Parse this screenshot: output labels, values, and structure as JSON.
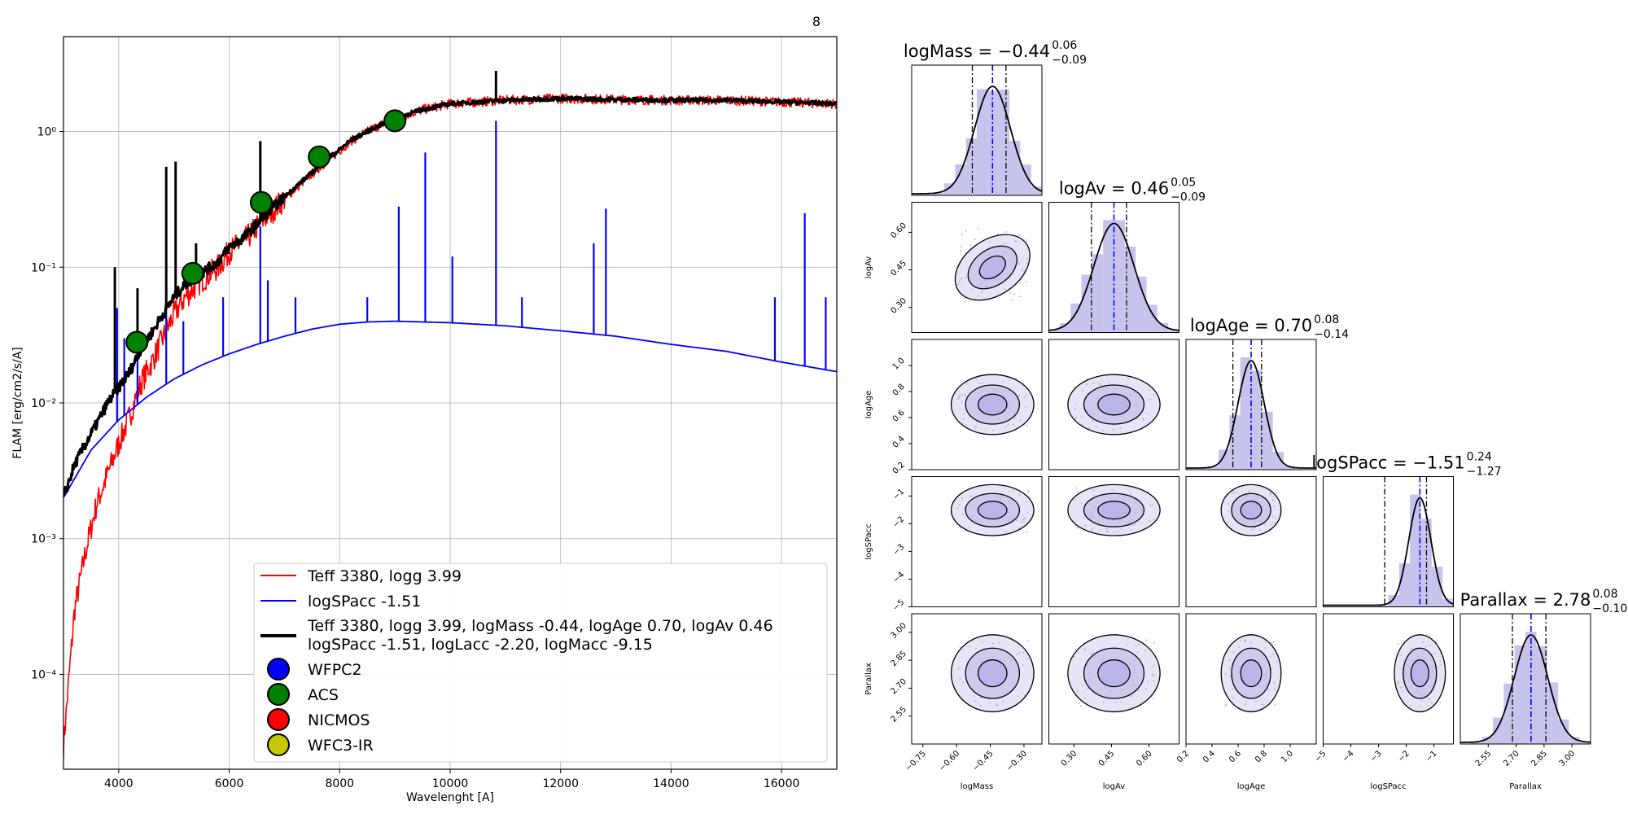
{
  "figure_number": "8",
  "chart_data": [
    {
      "type": "line",
      "xlabel": "Wavelenght [A]",
      "ylabel": "FLAM [erg/cm2/s/A]",
      "yscale": "log",
      "xlim": [
        3000,
        17000
      ],
      "ylim": [
        2e-05,
        5
      ],
      "grid": true,
      "legend_placement": "lower-right",
      "x_ticks": [
        "4000",
        "6000",
        "8000",
        "10000",
        "12000",
        "14000",
        "16000"
      ],
      "y_ticks": [
        "10⁻⁴",
        "10⁻³",
        "10⁻²",
        "10⁻¹",
        "10⁰"
      ],
      "series": [
        {
          "name": "Teff 3380, logg 3.99",
          "color": "#ff0000",
          "x": [
            3000,
            3200,
            3400,
            3600,
            3800,
            4000,
            4200,
            4400,
            4600,
            4800,
            5000,
            5200,
            5500,
            5800,
            6000,
            6300,
            6600,
            7000,
            7400,
            7800,
            8200,
            8600,
            9000,
            9500,
            10000,
            11000,
            12000,
            13000,
            14000,
            15000,
            16000,
            17000
          ],
          "y": [
            3e-05,
            0.0003,
            0.0008,
            0.0018,
            0.003,
            0.005,
            0.008,
            0.014,
            0.02,
            0.03,
            0.045,
            0.06,
            0.08,
            0.1,
            0.13,
            0.16,
            0.22,
            0.32,
            0.45,
            0.62,
            0.85,
            1.05,
            1.25,
            1.45,
            1.6,
            1.7,
            1.75,
            1.72,
            1.7,
            1.7,
            1.65,
            1.6
          ]
        },
        {
          "name": "logSPacc -1.51",
          "color": "#0000ff",
          "x": [
            3000,
            3500,
            4000,
            4500,
            5000,
            5500,
            6000,
            6500,
            7000,
            7500,
            8000,
            8500,
            9000,
            9500,
            10000,
            10500,
            11000,
            12000,
            13000,
            14000,
            15000,
            16000,
            17000
          ],
          "y": [
            0.002,
            0.0045,
            0.0075,
            0.011,
            0.015,
            0.019,
            0.023,
            0.027,
            0.031,
            0.035,
            0.038,
            0.0395,
            0.04,
            0.0395,
            0.039,
            0.038,
            0.037,
            0.034,
            0.031,
            0.027,
            0.024,
            0.02,
            0.017
          ]
        },
        {
          "name": "Teff 3380, logg 3.99, logMass -0.44, logAge 0.70, logAv 0.46",
          "name_line2": "logSPacc -1.51, logLacc -2.20, logMacc -9.15",
          "color": "#000000",
          "x": [
            3000,
            3200,
            3400,
            3600,
            3800,
            4000,
            4200,
            4400,
            4600,
            4800,
            5000,
            5200,
            5500,
            5800,
            6000,
            6300,
            6600,
            7000,
            7400,
            7800,
            8200,
            8600,
            9000,
            9500,
            10000,
            11000,
            12000,
            13000,
            14000,
            15000,
            16000,
            17000
          ],
          "y": [
            0.002,
            0.0035,
            0.005,
            0.007,
            0.01,
            0.013,
            0.017,
            0.025,
            0.033,
            0.045,
            0.06,
            0.075,
            0.09,
            0.11,
            0.14,
            0.17,
            0.23,
            0.33,
            0.46,
            0.63,
            0.86,
            1.05,
            1.25,
            1.45,
            1.6,
            1.7,
            1.75,
            1.72,
            1.7,
            1.7,
            1.65,
            1.6
          ]
        }
      ],
      "photometry": {
        "name": "ACS",
        "color": "#008000",
        "x": [
          4330,
          5340,
          6580,
          7630,
          9000
        ],
        "y": [
          0.028,
          0.09,
          0.3,
          0.65,
          1.2
        ]
      },
      "legend_markers": [
        {
          "name": "WFPC2",
          "color": "#0000ff"
        },
        {
          "name": "ACS",
          "color": "#008000"
        },
        {
          "name": "NICMOS",
          "color": "#ff0000"
        },
        {
          "name": "WFC3-IR",
          "color": "#c8c800"
        }
      ]
    },
    {
      "type": "corner",
      "fill_color": "#b8b4e8",
      "contour_color": "#000000",
      "median_line_color": "#0000ff",
      "parameters": [
        {
          "name": "logMass",
          "title": "logMass = −0.44",
          "sup": "0.06",
          "sub": "−0.09",
          "median": -0.44,
          "lo": -0.53,
          "hi": -0.38,
          "range": [
            -0.8,
            -0.22
          ],
          "sigma": 0.08,
          "ticks": [
            "−0.75",
            "−0.60",
            "−0.45",
            "−0.30"
          ],
          "tick_values": [
            -0.75,
            -0.6,
            -0.45,
            -0.3
          ]
        },
        {
          "name": "logAv",
          "title": "logAv = 0.46",
          "sup": "0.05",
          "sub": "−0.09",
          "median": 0.46,
          "lo": 0.37,
          "hi": 0.51,
          "range": [
            0.2,
            0.72
          ],
          "sigma": 0.08,
          "ticks": [
            "0.30",
            "0.45",
            "0.60"
          ],
          "tick_values": [
            0.3,
            0.45,
            0.6
          ]
        },
        {
          "name": "logAge",
          "title": "logAge = 0.70",
          "sup": "0.08",
          "sub": "−0.14",
          "median": 0.7,
          "lo": 0.56,
          "hi": 0.78,
          "range": [
            0.2,
            1.2
          ],
          "sigma": 0.1,
          "ticks": [
            "0.2",
            "0.4",
            "0.6",
            "0.8",
            "1.0"
          ],
          "tick_values": [
            0.2,
            0.4,
            0.6,
            0.8,
            1.0
          ]
        },
        {
          "name": "logSPacc",
          "title": "logSPacc = −1.51",
          "sup": "0.24",
          "sub": "−1.27",
          "median": -1.51,
          "lo": -2.78,
          "hi": -1.27,
          "range": [
            -5,
            -0.3
          ],
          "sigma": 0.4,
          "ticks": [
            "−5",
            "−4",
            "−3",
            "−2",
            "−1"
          ],
          "tick_values": [
            -5,
            -4,
            -3,
            -2,
            -1
          ]
        },
        {
          "name": "Parallax",
          "title": "Parallax = 2.78",
          "sup": "0.08",
          "sub": "−0.10",
          "median": 2.78,
          "lo": 2.68,
          "hi": 2.86,
          "range": [
            2.4,
            3.1
          ],
          "sigma": 0.09,
          "ticks": [
            "2.55",
            "2.70",
            "2.85",
            "3.00"
          ],
          "tick_values": [
            2.55,
            2.7,
            2.85,
            3.0
          ]
        }
      ]
    }
  ]
}
